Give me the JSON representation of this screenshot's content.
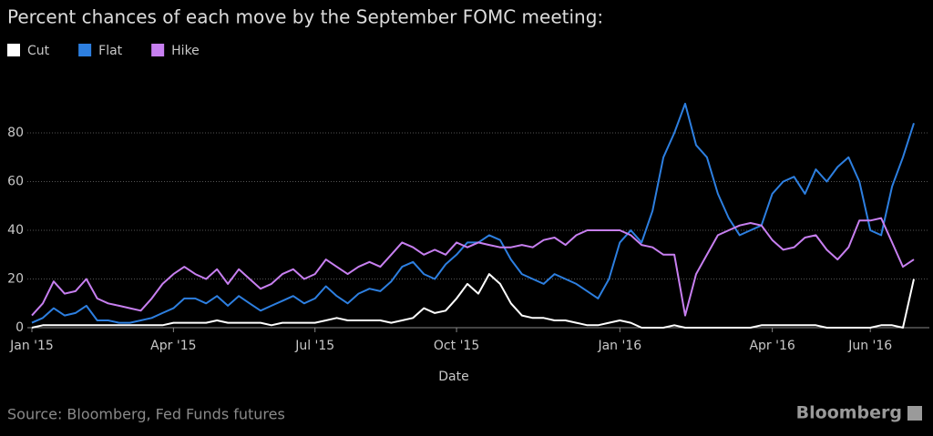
{
  "chart_data": {
    "type": "line",
    "title": "Percent chances of each move by the September FOMC meeting:",
    "xlabel": "Date",
    "source": "Source: Bloomberg, Fed Funds futures",
    "brand": "Bloomberg",
    "categories": [
      "Jan '15",
      null,
      null,
      null,
      null,
      null,
      null,
      null,
      null,
      null,
      null,
      null,
      null,
      "Apr '15",
      null,
      null,
      null,
      null,
      null,
      null,
      null,
      null,
      null,
      null,
      null,
      null,
      "Jul '15",
      null,
      null,
      null,
      null,
      null,
      null,
      null,
      null,
      null,
      null,
      null,
      null,
      "Oct '15",
      null,
      null,
      null,
      null,
      null,
      null,
      null,
      null,
      null,
      null,
      null,
      null,
      null,
      null,
      "Jan '16",
      null,
      null,
      null,
      null,
      null,
      null,
      null,
      null,
      null,
      null,
      null,
      null,
      null,
      "Apr '16",
      null,
      null,
      null,
      null,
      null,
      null,
      null,
      null,
      "Jun '16",
      null,
      null,
      null,
      null
    ],
    "series": [
      {
        "name": "Cut",
        "color": "#ffffff",
        "values": [
          0,
          1,
          1,
          1,
          1,
          1,
          1,
          1,
          1,
          1,
          1,
          1,
          1,
          2,
          2,
          2,
          2,
          3,
          2,
          2,
          2,
          2,
          1,
          2,
          2,
          2,
          2,
          3,
          4,
          3,
          3,
          3,
          3,
          2,
          3,
          4,
          8,
          6,
          7,
          12,
          18,
          14,
          22,
          18,
          10,
          5,
          4,
          4,
          3,
          3,
          2,
          1,
          1,
          2,
          3,
          2,
          0,
          0,
          0,
          1,
          0,
          0,
          0,
          0,
          0,
          0,
          0,
          1,
          1,
          1,
          1,
          1,
          1,
          0,
          0,
          0,
          0,
          0,
          1,
          1,
          0,
          20
        ]
      },
      {
        "name": "Flat",
        "color": "#2d7fe0",
        "values": [
          2,
          4,
          8,
          5,
          6,
          9,
          3,
          3,
          2,
          2,
          3,
          4,
          6,
          8,
          12,
          12,
          10,
          13,
          9,
          13,
          10,
          7,
          9,
          11,
          13,
          10,
          12,
          17,
          13,
          10,
          14,
          16,
          15,
          19,
          25,
          27,
          22,
          20,
          26,
          30,
          35,
          35,
          38,
          36,
          28,
          22,
          20,
          18,
          22,
          20,
          18,
          15,
          12,
          20,
          35,
          40,
          35,
          48,
          70,
          80,
          92,
          75,
          70,
          55,
          45,
          38,
          40,
          42,
          55,
          60,
          62,
          55,
          65,
          60,
          66,
          70,
          60,
          40,
          38,
          58,
          70,
          84
        ]
      },
      {
        "name": "Hike",
        "color": "#c77ff0",
        "values": [
          5,
          10,
          19,
          14,
          15,
          20,
          12,
          10,
          9,
          8,
          7,
          12,
          18,
          22,
          25,
          22,
          20,
          24,
          18,
          24,
          20,
          16,
          18,
          22,
          24,
          20,
          22,
          28,
          25,
          22,
          25,
          27,
          25,
          30,
          35,
          33,
          30,
          32,
          30,
          35,
          33,
          35,
          34,
          33,
          33,
          34,
          33,
          36,
          37,
          34,
          38,
          40,
          40,
          40,
          40,
          38,
          34,
          33,
          30,
          30,
          5,
          22,
          30,
          38,
          40,
          42,
          43,
          42,
          36,
          32,
          33,
          37,
          38,
          32,
          28,
          33,
          44,
          44,
          45,
          35,
          25,
          28
        ]
      }
    ],
    "ylim": [
      0,
      100
    ],
    "yticks": [
      0,
      20,
      40,
      60,
      80
    ],
    "grid": true
  }
}
